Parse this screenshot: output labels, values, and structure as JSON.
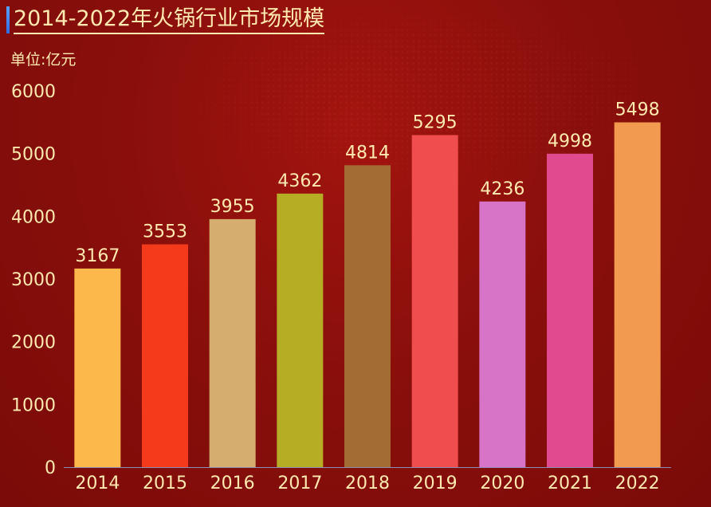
{
  "title": "2014-2022年火锅行业市场规模",
  "unit_label": "单位:亿元",
  "colors": {
    "text": "#ffe9b0",
    "axis": "#8a8fb5",
    "title_accent": "#3f82ef"
  },
  "chart_data": {
    "type": "bar",
    "title": "2014-2022年火锅行业市场规模",
    "ylabel": "单位:亿元",
    "xlabel": "",
    "ylim": [
      0,
      6000
    ],
    "yticks": [
      0,
      1000,
      2000,
      3000,
      4000,
      5000,
      6000
    ],
    "grid": false,
    "categories": [
      "2014",
      "2015",
      "2016",
      "2017",
      "2018",
      "2019",
      "2020",
      "2021",
      "2022"
    ],
    "values": [
      3167,
      3553,
      3955,
      4362,
      4814,
      5295,
      4236,
      4998,
      5498
    ],
    "bar_colors": [
      "#fdb84c",
      "#f5391b",
      "#d4ad6f",
      "#b7ad24",
      "#a36c35",
      "#f04d4f",
      "#d774c7",
      "#e14a8f",
      "#f19a50"
    ],
    "data_labels": [
      "3167",
      "3553",
      "3955",
      "4362",
      "4814",
      "5295",
      "4236",
      "4998",
      "5498"
    ]
  }
}
